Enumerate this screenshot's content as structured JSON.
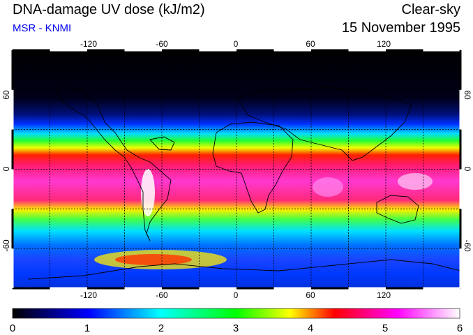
{
  "header": {
    "title": "DNA-damage UV dose (kJ/m2)",
    "subtitle": "MSR - KNMI",
    "condition": "Clear-sky",
    "date": "15 November 1995"
  },
  "map": {
    "projection": "equirectangular",
    "lon_range": [
      -180,
      180
    ],
    "lat_range": [
      -90,
      90
    ],
    "lon_ticks": [
      "-120",
      "-60",
      "0",
      "60",
      "120"
    ],
    "lat_ticks": [
      "60",
      "0",
      "-60"
    ],
    "grid_lines_lon": [
      -150,
      -120,
      -90,
      -60,
      -30,
      0,
      30,
      60,
      90,
      120,
      150
    ],
    "grid_lines_lat": [
      -60,
      -30,
      0,
      30,
      60
    ],
    "grid_style": "dotted"
  },
  "colorbar": {
    "min": 0,
    "max": 6,
    "ticks": [
      "0",
      "1",
      "2",
      "3",
      "4",
      "5",
      "6"
    ],
    "stops": [
      "#000000",
      "#0000ff",
      "#00ffff",
      "#00ff00",
      "#ffff00",
      "#ff0000",
      "#ff00ff",
      "#ffffff"
    ]
  }
}
